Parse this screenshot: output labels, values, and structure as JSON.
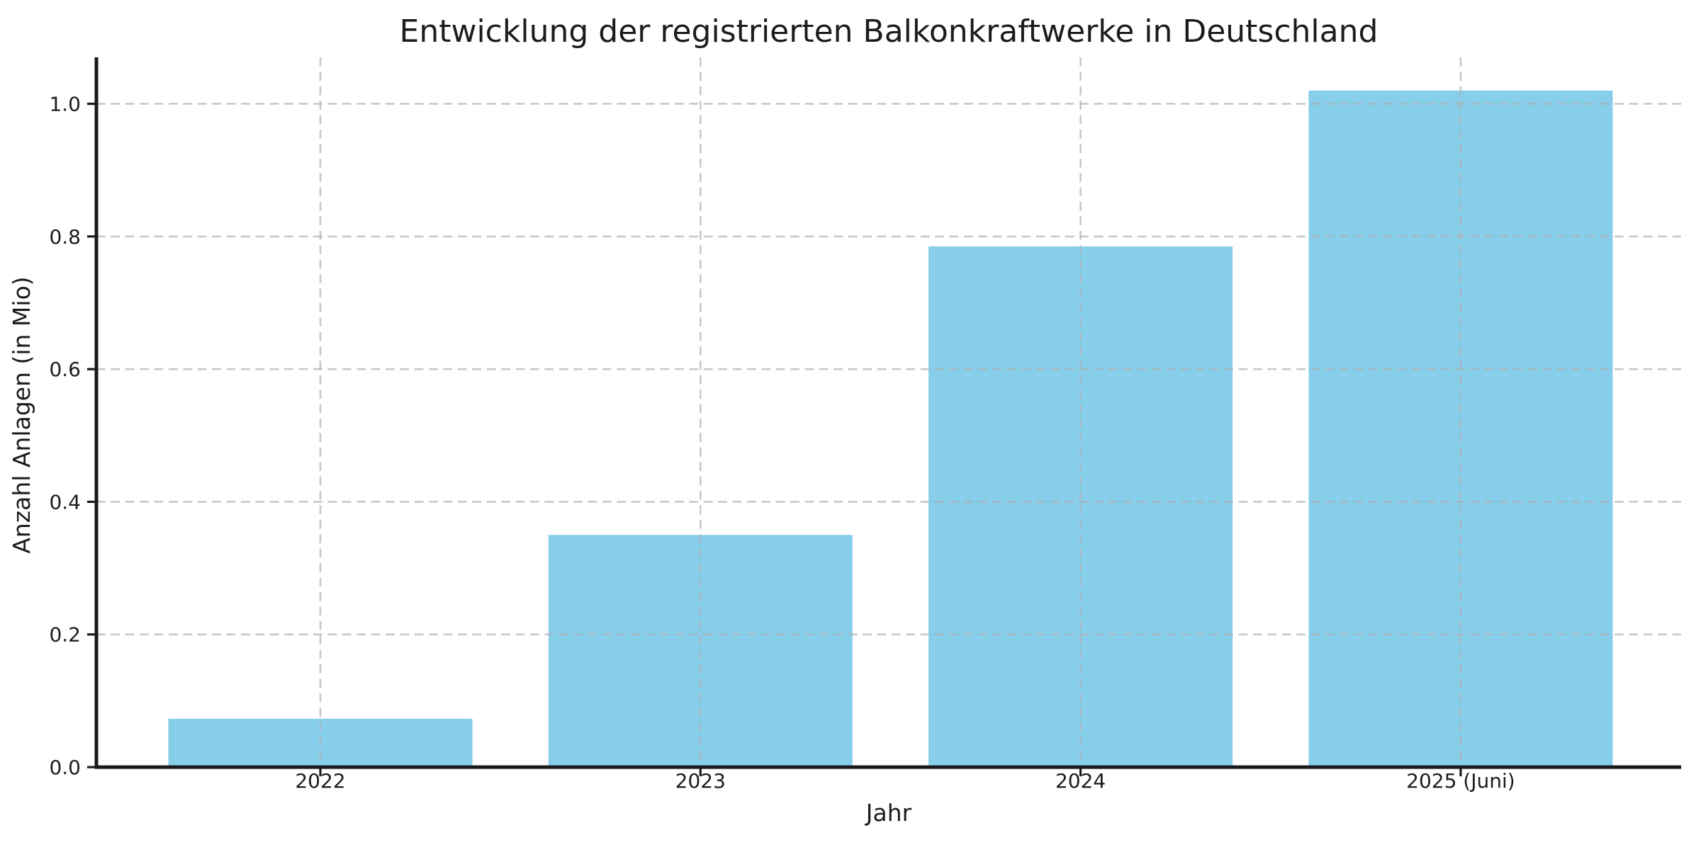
{
  "chart_data": {
    "type": "bar",
    "title": "Entwicklung der registrierten Balkonkraftwerke in Deutschland",
    "xlabel": "Jahr",
    "ylabel": "Anzahl Anlagen (in Mio)",
    "categories": [
      "2022",
      "2023",
      "2024",
      "2025 (Juni)"
    ],
    "values": [
      0.073,
      0.35,
      0.785,
      1.02
    ],
    "series_name": "Anzahl Anlagen (in Mio)",
    "yticks": [
      0,
      0.2,
      0.4,
      0.6,
      0.8,
      1.0
    ],
    "ytick_labels": [
      "0.0",
      "0.2",
      "0.4",
      "0.6",
      "0.8",
      "1.0"
    ],
    "ylim": [
      0,
      1.07
    ],
    "grid": true,
    "grid_linestyle": "dashed",
    "grid_on_top_of_bars": true,
    "legend_position": "none",
    "colors": {
      "bar": "#87CEEB",
      "grid": "#b0b0b0",
      "axis": "#1a1a1a",
      "text": "#1c1c1c",
      "background": "#ffffff"
    }
  }
}
